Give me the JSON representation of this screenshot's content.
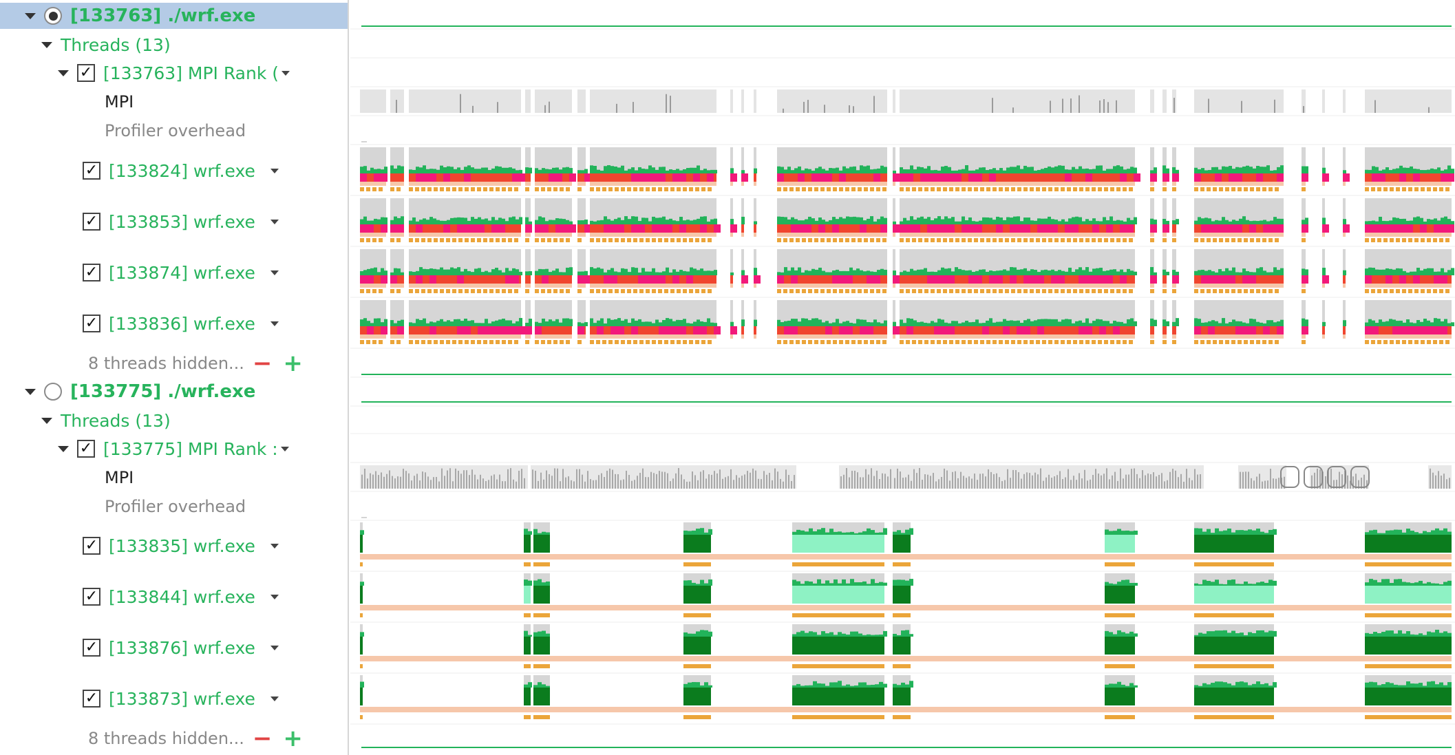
{
  "processes": [
    {
      "label": "[133763] ./wrf.exe",
      "selected": true,
      "threads_group": "Threads (13)",
      "main_thread": "[133763] MPI Rank (",
      "sub_rows": [
        "MPI",
        "Profiler overhead"
      ],
      "threads": [
        "[133824] wrf.exe",
        "[133853] wrf.exe",
        "[133874] wrf.exe",
        "[133836] wrf.exe"
      ],
      "hidden_label": "8 threads hidden..."
    },
    {
      "label": "[133775] ./wrf.exe",
      "selected": false,
      "threads_group": "Threads (13)",
      "main_thread": "[133775] MPI Rank :",
      "sub_rows": [
        "MPI",
        "Profiler overhead"
      ],
      "threads": [
        "[133835] wrf.exe",
        "[133844] wrf.exe",
        "[133876] wrf.exe",
        "[133873] wrf.exe"
      ],
      "hidden_label": "8 threads hidden..."
    }
  ],
  "colors": {
    "label_green": "#27b35c",
    "activity_green": "#22b35a",
    "sync_pink": "#f2197a",
    "mpi_red": "#f0452f",
    "orange": "#eba53a",
    "peach": "#f6c7aa",
    "idle_gray": "#d6d6d6",
    "light_green": "#8ef2c4",
    "dark_green": "#0b7c1e"
  }
}
